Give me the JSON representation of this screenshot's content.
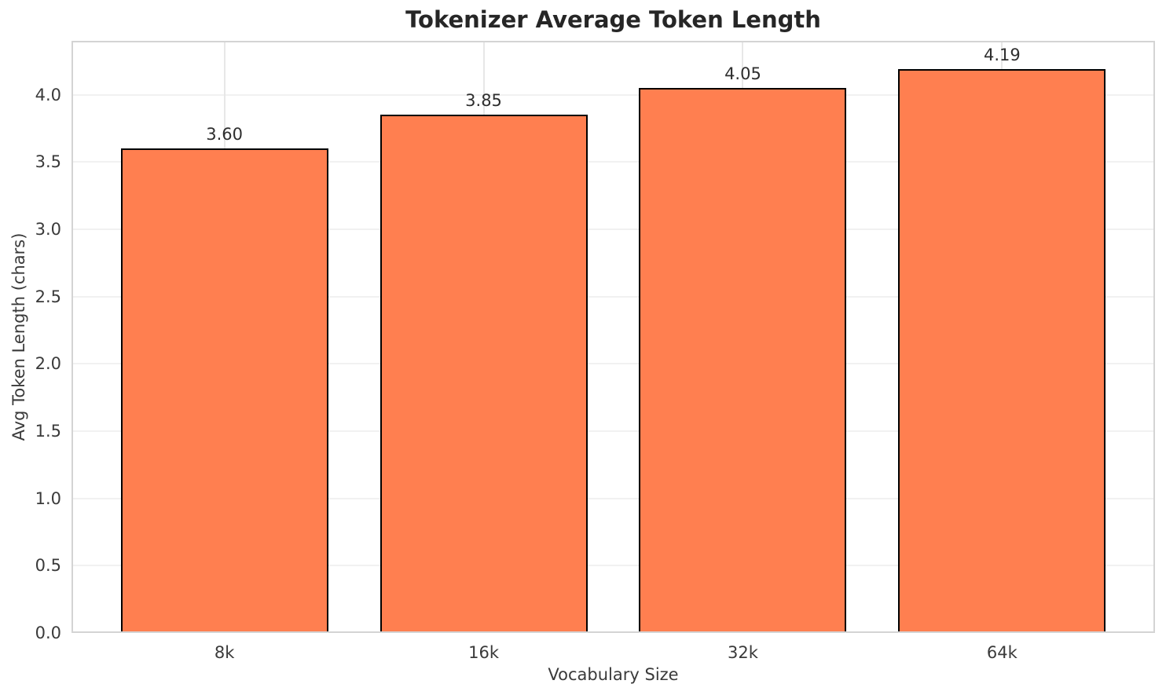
{
  "chart_data": {
    "type": "bar",
    "title": "Tokenizer Average Token Length",
    "xlabel": "Vocabulary Size",
    "ylabel": "Avg Token Length (chars)",
    "categories": [
      "8k",
      "16k",
      "32k",
      "64k"
    ],
    "values": [
      3.6,
      3.85,
      4.05,
      4.19
    ],
    "value_labels": [
      "3.60",
      "3.85",
      "4.05",
      "4.19"
    ],
    "ytick_labels": [
      "0.0",
      "0.5",
      "1.0",
      "1.5",
      "2.0",
      "2.5",
      "3.0",
      "3.5",
      "4.0"
    ],
    "ylim": [
      0,
      4.4
    ],
    "grid": "on",
    "legend_position": "none",
    "colors": {
      "bar_fill": "#FF7F50",
      "bar_edge": "#000000",
      "grid_h": "#f1f1f1",
      "grid_v": "#e7e7e7",
      "spine": "#d4d4d4",
      "title_text": "#262626",
      "tick_text": "#3a3a3a",
      "background": "#ffffff"
    }
  }
}
